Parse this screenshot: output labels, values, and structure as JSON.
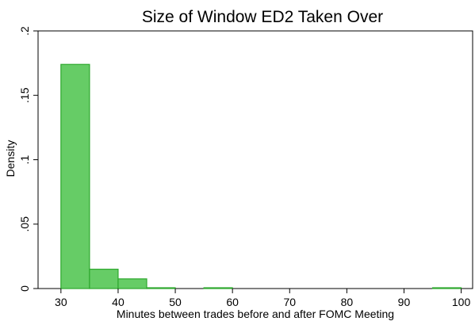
{
  "chart_data": {
    "type": "bar",
    "subtype": "histogram",
    "title": "Size of Window ED2 Taken Over",
    "xlabel": "Minutes between trades before and after FOMC Meeting",
    "ylabel": "Density",
    "xlim": [
      26,
      102
    ],
    "ylim": [
      0,
      0.2
    ],
    "xticks": [
      {
        "value": 30,
        "label": "30"
      },
      {
        "value": 40,
        "label": "40"
      },
      {
        "value": 50,
        "label": "50"
      },
      {
        "value": 60,
        "label": "60"
      },
      {
        "value": 70,
        "label": "70"
      },
      {
        "value": 80,
        "label": "80"
      },
      {
        "value": 90,
        "label": "90"
      },
      {
        "value": 100,
        "label": "100"
      }
    ],
    "yticks": [
      {
        "value": 0,
        "label": "0"
      },
      {
        "value": 0.05,
        "label": ".05"
      },
      {
        "value": 0.1,
        "label": ".1"
      },
      {
        "value": 0.15,
        "label": ".15"
      },
      {
        "value": 0.2,
        "label": ".2"
      }
    ],
    "bins": [
      {
        "x0": 30,
        "x1": 35,
        "density": 0.174
      },
      {
        "x0": 35,
        "x1": 40,
        "density": 0.015
      },
      {
        "x0": 40,
        "x1": 45,
        "density": 0.0075
      },
      {
        "x0": 45,
        "x1": 50,
        "density": 0.0004
      },
      {
        "x0": 55,
        "x1": 60,
        "density": 0.0004
      },
      {
        "x0": 95,
        "x1": 100,
        "density": 0.0004
      }
    ],
    "grid": false,
    "legend": "none",
    "bar_fill": "#66cc66",
    "bar_edge": "#2ea82e"
  }
}
